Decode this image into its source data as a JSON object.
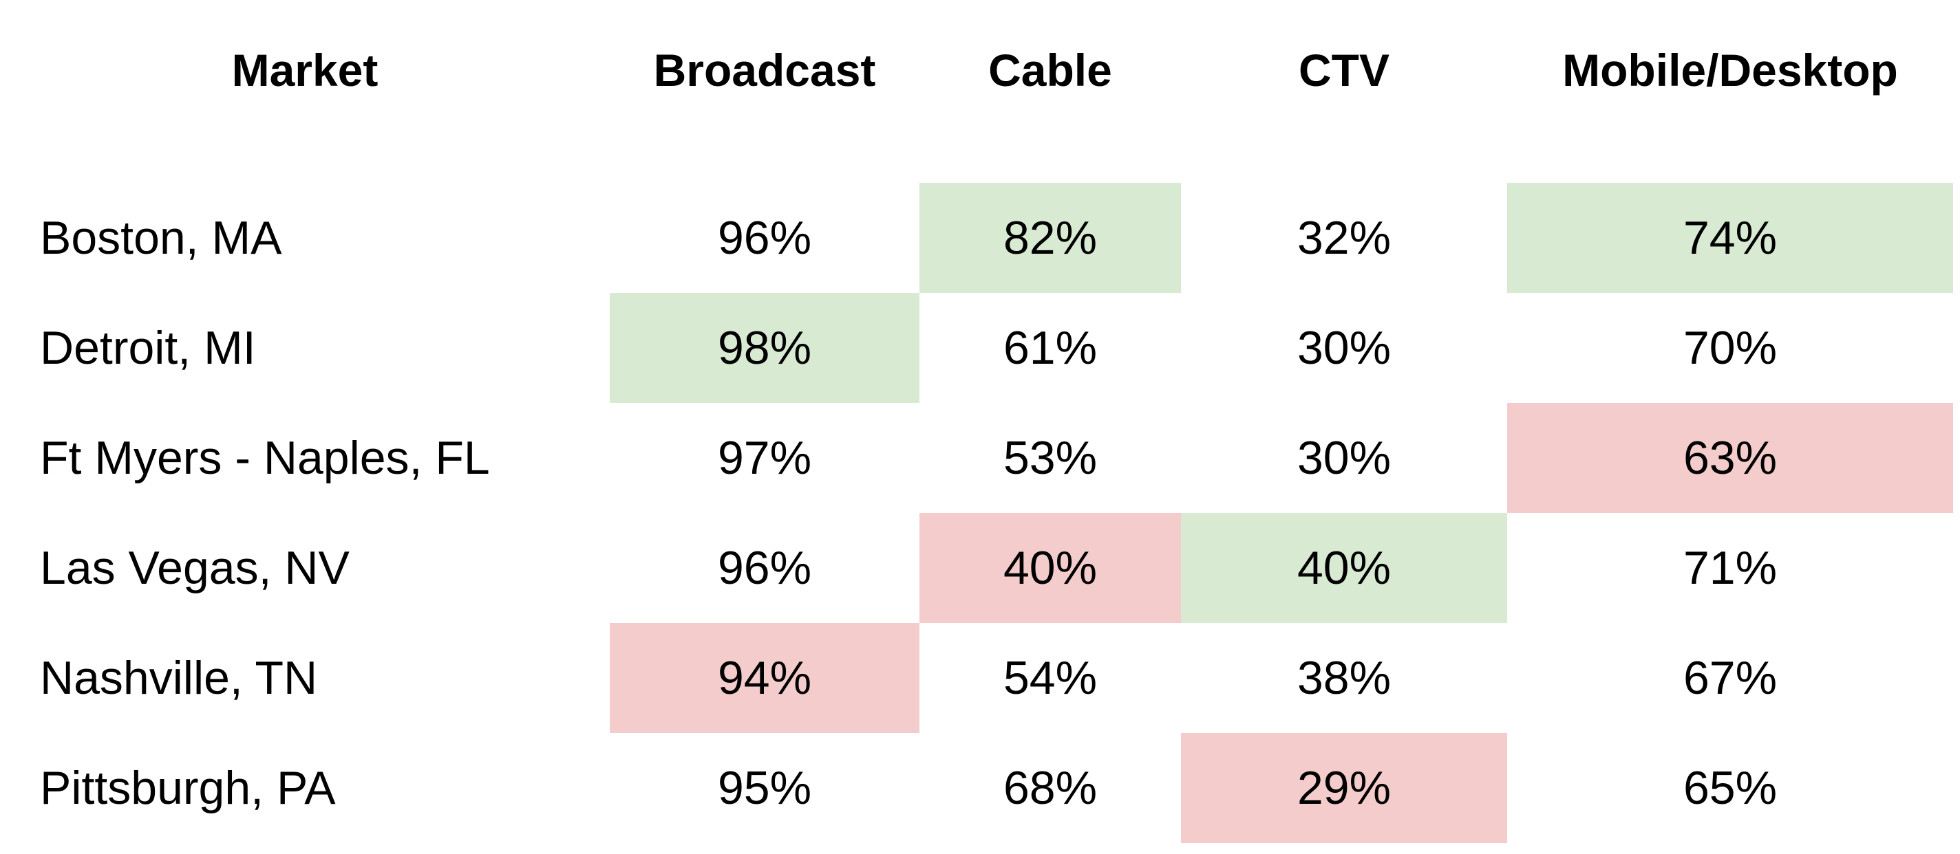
{
  "chart_data": {
    "type": "table",
    "columns": [
      "Market",
      "Broadcast",
      "Cable",
      "CTV",
      "Mobile/Desktop"
    ],
    "rows": [
      {
        "market": "Boston, MA",
        "values": [
          "96%",
          "82%",
          "32%",
          "74%"
        ],
        "highlight": [
          "",
          "high",
          "",
          "high"
        ]
      },
      {
        "market": "Detroit, MI",
        "values": [
          "98%",
          "61%",
          "30%",
          "70%"
        ],
        "highlight": [
          "high",
          "",
          "",
          ""
        ]
      },
      {
        "market": "Ft Myers - Naples, FL",
        "values": [
          "97%",
          "53%",
          "30%",
          "63%"
        ],
        "highlight": [
          "",
          "",
          "",
          "low"
        ]
      },
      {
        "market": "Las Vegas, NV",
        "values": [
          "96%",
          "40%",
          "40%",
          "71%"
        ],
        "highlight": [
          "",
          "low",
          "high",
          ""
        ]
      },
      {
        "market": "Nashville, TN",
        "values": [
          "94%",
          "54%",
          "38%",
          "67%"
        ],
        "highlight": [
          "low",
          "",
          "",
          ""
        ]
      },
      {
        "market": "Pittsburgh, PA",
        "values": [
          "95%",
          "68%",
          "29%",
          "65%"
        ],
        "highlight": [
          "",
          "",
          "low",
          ""
        ]
      }
    ],
    "colors": {
      "high": "#d9ead3",
      "low": "#f4cccc"
    }
  }
}
